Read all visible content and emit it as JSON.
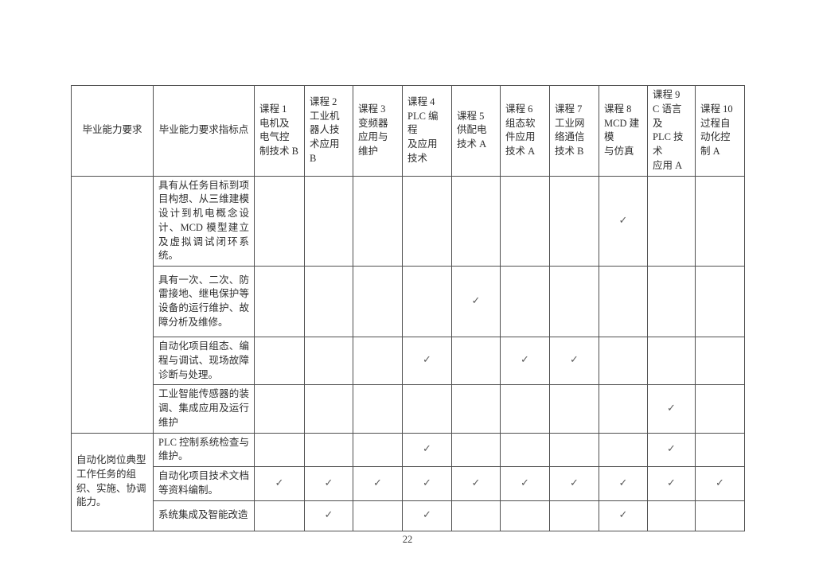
{
  "page": {
    "number": "22"
  },
  "table": {
    "checkmark": "✓",
    "header": {
      "requirement_label": "毕业能力要求",
      "indicator_label": "毕业能力要求指标点",
      "courses": [
        "课程 1\n电机及\n电气控\n制技术 B",
        "课程 2\n工业机\n器人技\n术应用 B",
        "课程 3\n变频器\n应用与\n维护",
        "课程 4\nPLC 编程\n及应用\n技术",
        "课程 5\n供配电\n技术 A",
        "课程 6\n组态软\n件应用\n技术 A",
        "课程 7\n工业网\n络通信\n技术 B",
        "课程 8\nMCD 建模\n与仿真",
        "课程 9\nC 语言及\nPLC 技术\n应用 A",
        "课程 10\n过程自\n动化控\n制 A"
      ]
    },
    "groups": [
      {
        "requirement": "",
        "rows": [
          {
            "indicator": "具有从任务目标到项目构想、从三维建模设计到机电概念设计、MCD 模型建立及虚拟调试闭环系统。",
            "checks": [
              8
            ]
          },
          {
            "indicator": "具有一次、二次、防雷接地、继电保护等设备的运行维护、故障分析及维修。",
            "checks": [
              5
            ]
          },
          {
            "indicator": "自动化项目组态、编程与调试、现场故障诊断与处理。",
            "checks": [
              4,
              6,
              7
            ]
          },
          {
            "indicator": "工业智能传感器的装调、集成应用及运行维护",
            "checks": [
              9
            ]
          }
        ]
      },
      {
        "requirement": "自动化岗位典型工作任务的组织、实施、协调能力。",
        "rows": [
          {
            "indicator": "PLC 控制系统检查与维护。",
            "checks": [
              4,
              9
            ]
          },
          {
            "indicator": "自动化项目技术文档等资料编制。",
            "checks": [
              1,
              2,
              3,
              4,
              5,
              6,
              7,
              8,
              9,
              10
            ]
          },
          {
            "indicator": "系统集成及智能改造",
            "checks": [
              2,
              4,
              8
            ]
          }
        ]
      }
    ]
  }
}
